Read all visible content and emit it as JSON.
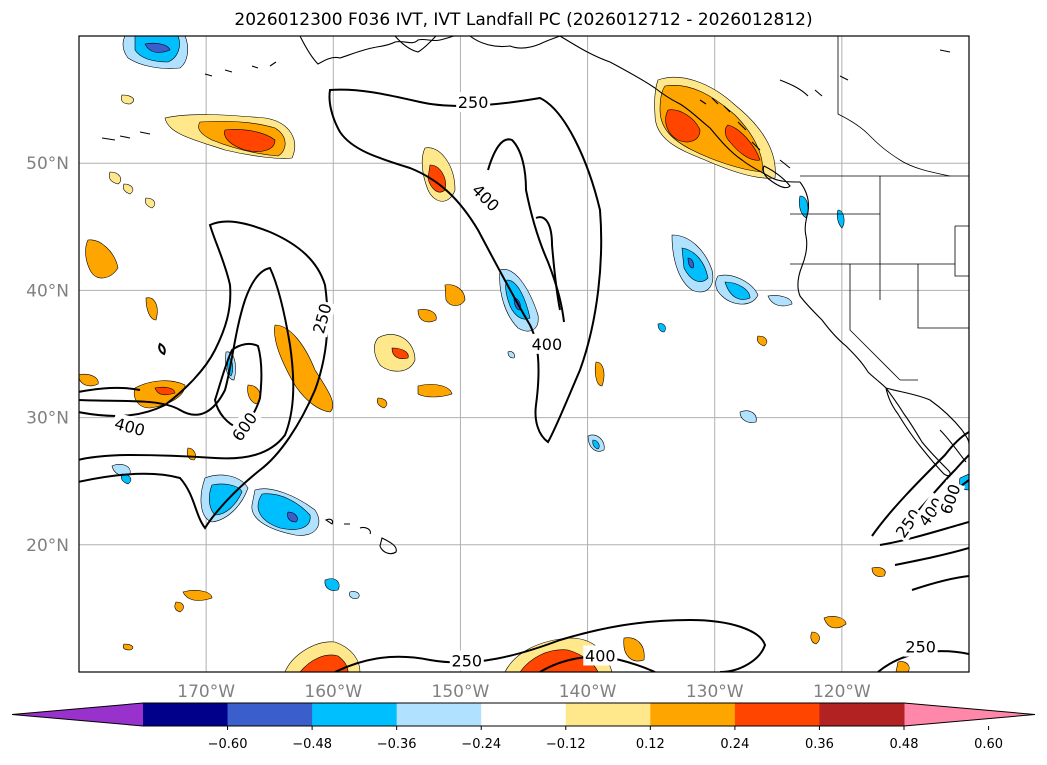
{
  "title": "2026012300 F036 IVT, IVT Landfall PC (2026012712 - 2026012812)",
  "map": {
    "lon_range": [
      -180,
      -110
    ],
    "lat_range": [
      10,
      60
    ],
    "lon_ticks": [
      {
        "lon": -170,
        "label": "170°W"
      },
      {
        "lon": -160,
        "label": "160°W"
      },
      {
        "lon": -150,
        "label": "150°W"
      },
      {
        "lon": -140,
        "label": "140°W"
      },
      {
        "lon": -130,
        "label": "130°W"
      },
      {
        "lon": -120,
        "label": "120°W"
      }
    ],
    "lat_ticks": [
      {
        "lat": 20,
        "label": "20°N"
      },
      {
        "lat": 30,
        "label": "30°N"
      },
      {
        "lat": 40,
        "label": "40°N"
      },
      {
        "lat": 50,
        "label": "50°N"
      }
    ],
    "grid": true,
    "contour_labels": [
      {
        "text": "250",
        "lon": -149,
        "lat": 54.8,
        "rot": 0
      },
      {
        "text": "400",
        "lon": -148,
        "lat": 47.3,
        "rot": 45
      },
      {
        "text": "400",
        "lon": -143.2,
        "lat": 35.8,
        "rot": 0
      },
      {
        "text": "250",
        "lon": -160.9,
        "lat": 37.8,
        "rot": -75
      },
      {
        "text": "400",
        "lon": -176,
        "lat": 29.3,
        "rot": 15
      },
      {
        "text": "600",
        "lon": -167,
        "lat": 29.3,
        "rot": -55
      },
      {
        "text": "250",
        "lon": -114.8,
        "lat": 21.7,
        "rot": -55
      },
      {
        "text": "400",
        "lon": -113,
        "lat": 22.6,
        "rot": -55
      },
      {
        "text": "600",
        "lon": -111.5,
        "lat": 23.6,
        "rot": -70
      },
      {
        "text": "250",
        "lon": -149.5,
        "lat": 10.9,
        "rot": 0
      },
      {
        "text": "400",
        "lon": -139,
        "lat": 11.3,
        "rot": 0
      },
      {
        "text": "250",
        "lon": -113.8,
        "lat": 12.0,
        "rot": 0
      }
    ]
  },
  "colorbar": {
    "ticks": [
      "−0.60",
      "−0.48",
      "−0.36",
      "−0.24",
      "−0.12",
      "0.12",
      "0.24",
      "0.36",
      "0.48",
      "0.60"
    ],
    "colors": [
      "#9932cc",
      "#00008b",
      "#3a5fcd",
      "#00bfff",
      "#b0e2ff",
      "#ffffff",
      "#ffe88c",
      "#ffa500",
      "#ff4500",
      "#b22222",
      "#ff88aa"
    ]
  }
}
